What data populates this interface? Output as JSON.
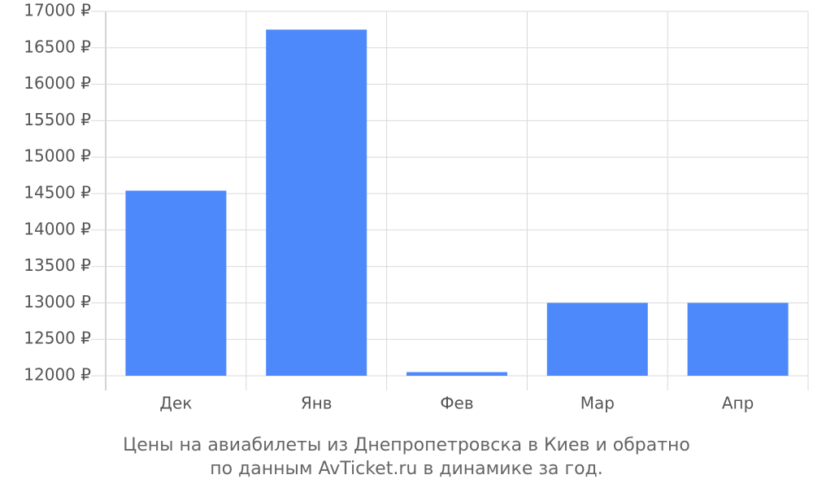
{
  "chart_data": {
    "type": "bar",
    "title_lines": [
      "Цены на авиабилеты из Днепропетровска в Киев и обратно",
      "по данным AvTicket.ru в динамике за год."
    ],
    "categories": [
      "Дек",
      "Янв",
      "Фев",
      "Мар",
      "Апр"
    ],
    "values": [
      14540,
      16750,
      12050,
      13000,
      13000
    ],
    "color": "#4e89fb",
    "ylim": [
      12000,
      17000
    ],
    "yticks": [
      {
        "value": 12000,
        "label": "12000 ₽"
      },
      {
        "value": 12500,
        "label": "12500 ₽"
      },
      {
        "value": 13000,
        "label": "13000 ₽"
      },
      {
        "value": 13500,
        "label": "13500 ₽"
      },
      {
        "value": 14000,
        "label": "14000 ₽"
      },
      {
        "value": 14500,
        "label": "14500 ₽"
      },
      {
        "value": 15000,
        "label": "15000 ₽"
      },
      {
        "value": 15500,
        "label": "15500 ₽"
      },
      {
        "value": 16000,
        "label": "16000 ₽"
      },
      {
        "value": 16500,
        "label": "16500 ₽"
      },
      {
        "value": 17000,
        "label": "17000 ₽"
      }
    ],
    "grid": true
  }
}
